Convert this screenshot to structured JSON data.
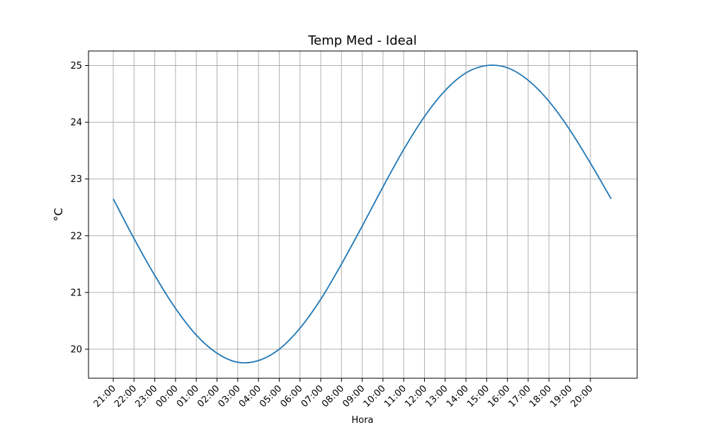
{
  "chart_data": {
    "type": "line",
    "title": "Temp Med - Ideal",
    "xlabel": "Hora",
    "ylabel": "°C",
    "grid": true,
    "x_tick_labels": [
      "21:00",
      "22:00",
      "23:00",
      "00:00",
      "01:00",
      "02:00",
      "03:00",
      "04:00",
      "05:00",
      "06:00",
      "07:00",
      "08:00",
      "09:00",
      "10:00",
      "11:00",
      "12:00",
      "13:00",
      "14:00",
      "15:00",
      "16:00",
      "17:00",
      "18:00",
      "19:00",
      "20:00"
    ],
    "y_ticks": [
      20,
      21,
      22,
      23,
      24,
      25
    ],
    "ylim": [
      19.5,
      25.25
    ],
    "series": [
      {
        "color": "#1f77b4",
        "x": [
          "21:00",
          "22:00",
          "23:00",
          "00:00",
          "01:00",
          "02:00",
          "03:00",
          "04:00",
          "05:00",
          "06:00",
          "07:00",
          "08:00",
          "09:00",
          "10:00",
          "11:00",
          "12:00",
          "13:00",
          "14:00",
          "15:00",
          "16:00",
          "17:00",
          "18:00",
          "19:00",
          "20:00",
          "21:00"
        ],
        "values": [
          22.65,
          21.95,
          21.3,
          20.72,
          20.25,
          19.93,
          19.77,
          19.8,
          20.0,
          20.37,
          20.88,
          21.5,
          22.17,
          22.86,
          23.52,
          24.1,
          24.56,
          24.87,
          25.0,
          24.96,
          24.74,
          24.37,
          23.87,
          23.28,
          22.65
        ]
      }
    ]
  }
}
